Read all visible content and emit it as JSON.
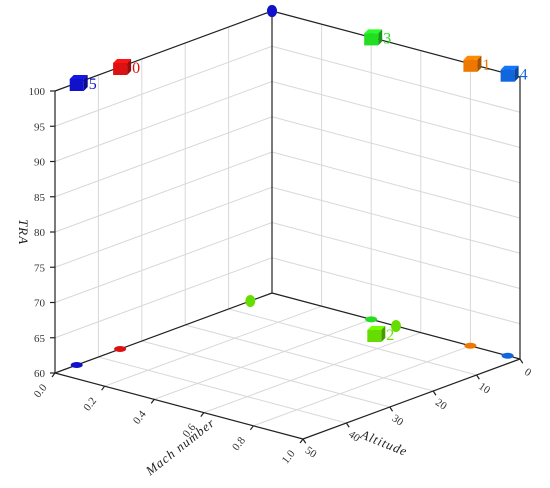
{
  "chart_data": {
    "type": "scatter",
    "subtype": "3d-scatter-with-projections",
    "axes": {
      "x": {
        "label": "Altitude",
        "range": [
          0,
          50
        ],
        "ticks": [
          "0",
          "10",
          "20",
          "30",
          "40",
          "50"
        ]
      },
      "y": {
        "label": "Mach number",
        "range": [
          0,
          1
        ],
        "ticks": [
          "0.0",
          "0.2",
          "0.4",
          "0.6",
          "0.8",
          "1.0"
        ]
      },
      "z": {
        "label": "TRA",
        "range": [
          60,
          100
        ],
        "ticks": [
          "60",
          "65",
          "70",
          "75",
          "80",
          "85",
          "90",
          "95",
          "100"
        ]
      }
    },
    "grid": true,
    "projections": [
      "xy-floor",
      "xz-back-wall",
      "yz-back-wall"
    ],
    "points": [
      {
        "label": "0",
        "altitude": 35,
        "mach": 0.0,
        "tra": 100,
        "color": "#dd1111"
      },
      {
        "label": "1",
        "altitude": 0,
        "mach": 0.8,
        "tra": 100,
        "color": "#ee7700"
      },
      {
        "label": "2",
        "altitude": 5,
        "mach": 0.5,
        "tra": 60,
        "color": "#66dd00"
      },
      {
        "label": "3",
        "altitude": 0,
        "mach": 0.4,
        "tra": 100,
        "color": "#22dd22"
      },
      {
        "label": "4",
        "altitude": 0,
        "mach": 0.95,
        "tra": 100,
        "color": "#1166dd"
      },
      {
        "label": "5",
        "altitude": 45,
        "mach": 0.0,
        "tra": 100,
        "color": "#1111cc"
      }
    ]
  }
}
